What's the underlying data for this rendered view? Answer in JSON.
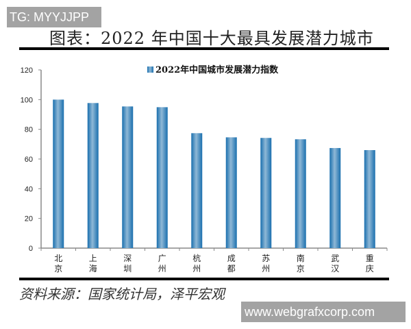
{
  "watermarks": {
    "top": "TG: MYYJJPP",
    "bottom": "www.webgrafxcorp.com"
  },
  "title": "图表：2022 年中国十大最具发展潜力城市",
  "source": "资料来源：国家统计局，泽平宏观",
  "chart_data": {
    "type": "bar",
    "title": "",
    "xlabel": "",
    "ylabel": "",
    "categories": [
      "北京",
      "上海",
      "深圳",
      "广州",
      "杭州",
      "成都",
      "苏州",
      "南京",
      "武汉",
      "重庆"
    ],
    "series": [
      {
        "name": "2022年中国城市发展潜力指数",
        "values": [
          100,
          97.7,
          95.4,
          94.9,
          77.4,
          74.6,
          74.2,
          73.3,
          67.4,
          66.0
        ]
      }
    ],
    "ylim": [
      0,
      120
    ],
    "yticks": [
      0,
      20,
      40,
      60,
      80,
      100,
      120
    ],
    "grid": false,
    "legend": "top-center",
    "bar_color": "#3d8fc4"
  }
}
